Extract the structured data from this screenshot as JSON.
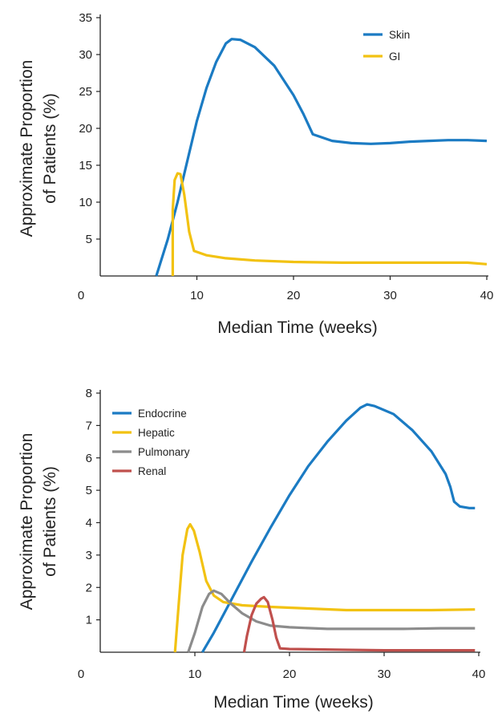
{
  "chart_data": [
    {
      "type": "line",
      "xlabel": "Median Time (weeks)",
      "ylabel": "Approximate Proportion of Patients (%)",
      "ylabel_lines": [
        "Approximate Proportion",
        "of Patients (%)"
      ],
      "xlim": [
        0,
        40
      ],
      "ylim": [
        0,
        35
      ],
      "x_origin_label": "0",
      "xticks": [
        10,
        20,
        30,
        40
      ],
      "yticks": [
        5,
        10,
        15,
        20,
        25,
        30,
        35
      ],
      "legend_position": "top-right",
      "series": [
        {
          "name": "Skin",
          "color": "#1b7bc3",
          "points": [
            [
              5.8,
              0
            ],
            [
              7,
              5
            ],
            [
              8,
              10
            ],
            [
              9,
              15.5
            ],
            [
              10,
              21
            ],
            [
              11,
              25.5
            ],
            [
              12,
              29
            ],
            [
              13,
              31.5
            ],
            [
              13.6,
              32.1
            ],
            [
              14.5,
              32
            ],
            [
              16,
              31
            ],
            [
              18,
              28.5
            ],
            [
              20,
              24.5
            ],
            [
              21,
              22
            ],
            [
              22,
              19.2
            ],
            [
              24,
              18.3
            ],
            [
              26,
              18
            ],
            [
              28,
              17.9
            ],
            [
              30,
              18
            ],
            [
              32,
              18.2
            ],
            [
              34,
              18.3
            ],
            [
              36,
              18.4
            ],
            [
              38,
              18.4
            ],
            [
              40,
              18.3
            ]
          ]
        },
        {
          "name": "GI",
          "color": "#f2c212",
          "points": [
            [
              7.5,
              0
            ],
            [
              7.5,
              9
            ],
            [
              7.7,
              13
            ],
            [
              8,
              13.9
            ],
            [
              8.3,
              13.8
            ],
            [
              8.7,
              11
            ],
            [
              9.2,
              6
            ],
            [
              9.7,
              3.4
            ],
            [
              11,
              2.8
            ],
            [
              13,
              2.4
            ],
            [
              16,
              2.1
            ],
            [
              20,
              1.9
            ],
            [
              25,
              1.8
            ],
            [
              30,
              1.8
            ],
            [
              35,
              1.8
            ],
            [
              38,
              1.8
            ],
            [
              40,
              1.6
            ]
          ]
        }
      ]
    },
    {
      "type": "line",
      "xlabel": "Median Time (weeks)",
      "ylabel": "Approximate Proportion of Patients (%)",
      "ylabel_lines": [
        "Approximate Proportion",
        "of Patients (%)"
      ],
      "xlim": [
        0,
        40
      ],
      "ylim": [
        0,
        8
      ],
      "x_origin_label": "0",
      "xticks": [
        10,
        20,
        30,
        40
      ],
      "yticks": [
        1,
        2,
        3,
        4,
        5,
        6,
        7,
        8
      ],
      "legend_position": "top-left",
      "series": [
        {
          "name": "Endocrine",
          "color": "#1b7bc3",
          "points": [
            [
              10.8,
              0
            ],
            [
              12,
              0.6
            ],
            [
              14,
              1.7
            ],
            [
              16,
              2.8
            ],
            [
              18,
              3.85
            ],
            [
              20,
              4.85
            ],
            [
              22,
              5.75
            ],
            [
              24,
              6.5
            ],
            [
              26,
              7.15
            ],
            [
              27.5,
              7.55
            ],
            [
              28.2,
              7.65
            ],
            [
              29,
              7.6
            ],
            [
              31,
              7.35
            ],
            [
              33,
              6.85
            ],
            [
              35,
              6.2
            ],
            [
              36.5,
              5.5
            ],
            [
              37,
              5.1
            ],
            [
              37.4,
              4.65
            ],
            [
              38,
              4.5
            ],
            [
              39,
              4.45
            ],
            [
              39.6,
              4.45
            ]
          ]
        },
        {
          "name": "Hepatic",
          "color": "#f2c212",
          "points": [
            [
              7.9,
              0
            ],
            [
              8.3,
              1.5
            ],
            [
              8.7,
              3
            ],
            [
              9.2,
              3.8
            ],
            [
              9.5,
              3.95
            ],
            [
              9.9,
              3.75
            ],
            [
              10.5,
              3.1
            ],
            [
              11.2,
              2.2
            ],
            [
              12,
              1.75
            ],
            [
              13,
              1.55
            ],
            [
              15,
              1.45
            ],
            [
              18,
              1.4
            ],
            [
              22,
              1.35
            ],
            [
              26,
              1.3
            ],
            [
              30,
              1.3
            ],
            [
              35,
              1.3
            ],
            [
              39.6,
              1.32
            ]
          ]
        },
        {
          "name": "Pulmonary",
          "color": "#8c8c8c",
          "points": [
            [
              9.3,
              0
            ],
            [
              10,
              0.6
            ],
            [
              10.8,
              1.4
            ],
            [
              11.5,
              1.8
            ],
            [
              12,
              1.9
            ],
            [
              12.8,
              1.8
            ],
            [
              13.8,
              1.5
            ],
            [
              15,
              1.2
            ],
            [
              16.5,
              0.95
            ],
            [
              18,
              0.82
            ],
            [
              20,
              0.77
            ],
            [
              24,
              0.72
            ],
            [
              28,
              0.72
            ],
            [
              32,
              0.72
            ],
            [
              36,
              0.74
            ],
            [
              39.6,
              0.74
            ]
          ]
        },
        {
          "name": "Renal",
          "color": "#c0504d",
          "points": [
            [
              15.2,
              0
            ],
            [
              15.5,
              0.5
            ],
            [
              16,
              1.15
            ],
            [
              16.5,
              1.5
            ],
            [
              17,
              1.65
            ],
            [
              17.3,
              1.7
            ],
            [
              17.7,
              1.55
            ],
            [
              18.2,
              1.0
            ],
            [
              18.6,
              0.45
            ],
            [
              19,
              0.12
            ],
            [
              20,
              0.1
            ],
            [
              25,
              0.08
            ],
            [
              30,
              0.06
            ],
            [
              35,
              0.06
            ],
            [
              39.6,
              0.06
            ]
          ]
        }
      ]
    }
  ]
}
